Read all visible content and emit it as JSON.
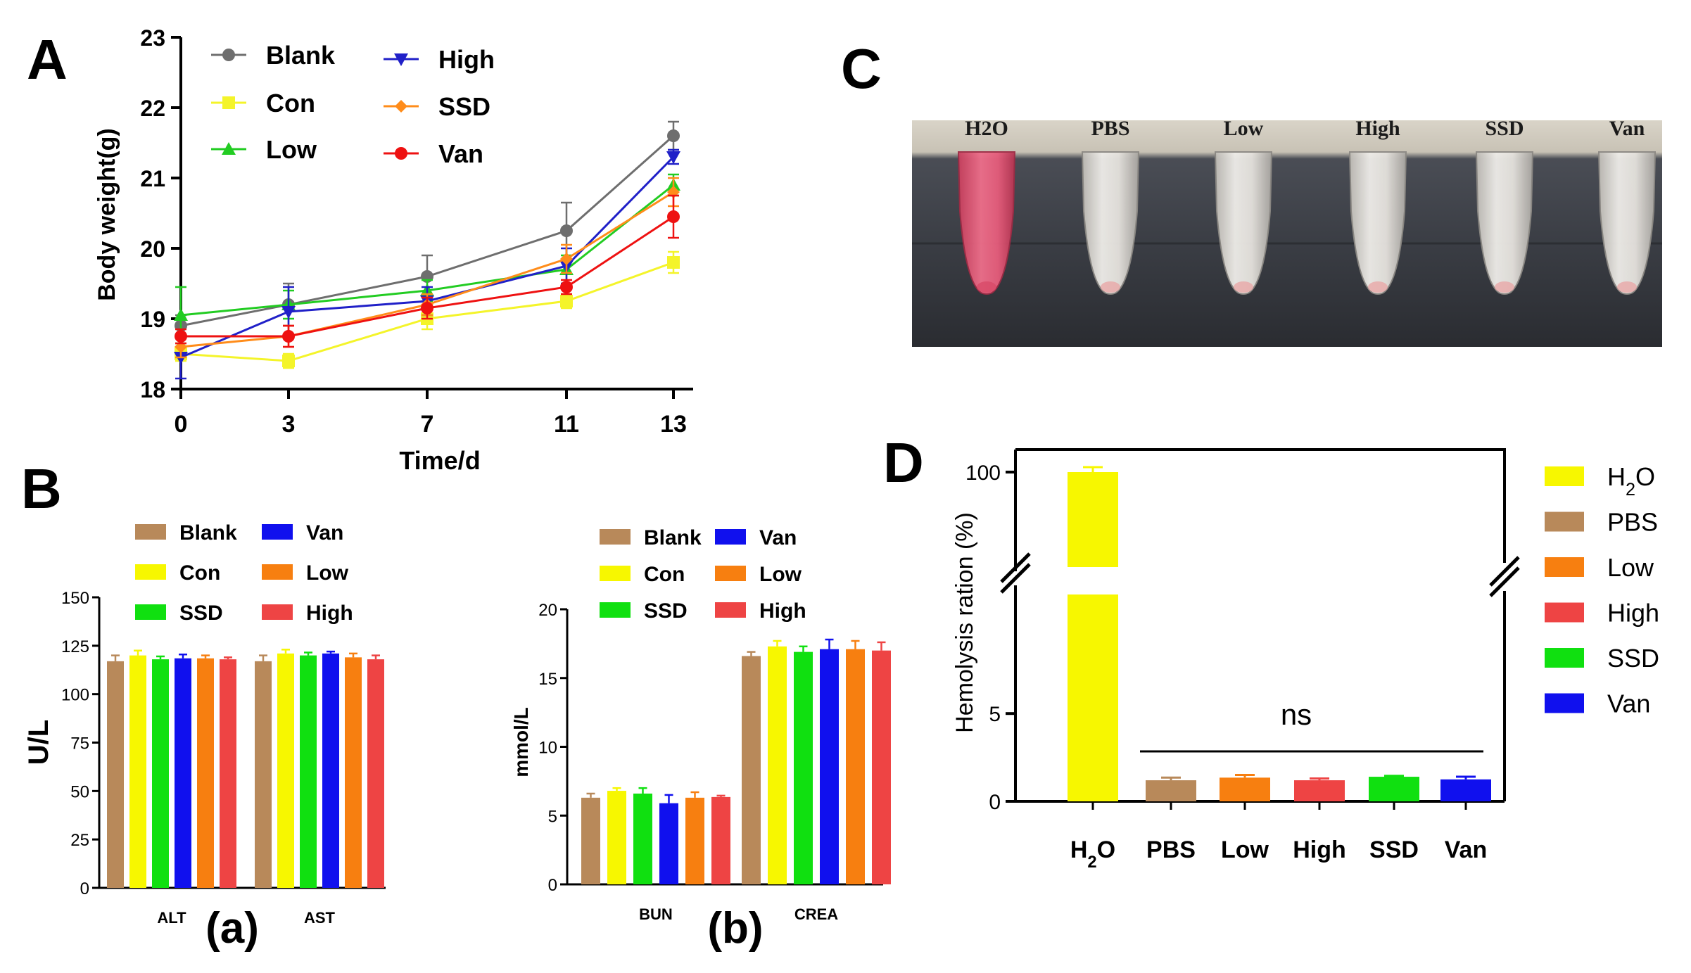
{
  "colors": {
    "Blank_A": "#6e6e6e",
    "Con": "#f4f42a",
    "Low_A": "#22cc22",
    "High_A": "#2020c8",
    "SSD_A": "#ff8c1a",
    "Van_A": "#ee1111",
    "Blank_B": "#b8895a",
    "Con_B": "#f7f700",
    "SSD_B": "#10e010",
    "Van_B": "#1010ee",
    "Low_B": "#f77f10",
    "High_B": "#ee4444",
    "H2O_D": "#f7f700",
    "PBS_D": "#b8895a",
    "Low_D": "#f77f10",
    "High_D": "#ee4444",
    "SSD_D": "#10e010",
    "Van_D": "#1010ee"
  },
  "chart_data": [
    {
      "panel": "A",
      "type": "line",
      "xlabel": "Time/d",
      "ylabel": "Body weight(g)",
      "x": [
        0,
        3,
        7,
        11,
        13
      ],
      "x_ticks": [
        "0",
        "3",
        "7",
        "11",
        "13"
      ],
      "ylim": [
        18,
        23
      ],
      "y_ticks": [
        "18",
        "19",
        "20",
        "21",
        "22",
        "23"
      ],
      "series": [
        {
          "name": "Blank",
          "values": [
            18.9,
            19.2,
            19.6,
            20.25,
            21.6
          ],
          "err": [
            0.15,
            0.3,
            0.3,
            0.4,
            0.2
          ]
        },
        {
          "name": "Con",
          "values": [
            18.5,
            18.4,
            19.0,
            19.25,
            19.8
          ],
          "err": [
            0.1,
            0.1,
            0.15,
            0.1,
            0.15
          ]
        },
        {
          "name": "Low",
          "values": [
            19.05,
            19.2,
            19.4,
            19.7,
            20.9
          ],
          "err": [
            0.4,
            0.2,
            0.15,
            0.2,
            0.15
          ]
        },
        {
          "name": "High",
          "values": [
            18.45,
            19.1,
            19.25,
            19.75,
            21.3
          ],
          "err": [
            0.3,
            0.35,
            0.2,
            0.25,
            0.1
          ]
        },
        {
          "name": "SSD",
          "values": [
            18.6,
            18.75,
            19.2,
            19.85,
            20.8
          ],
          "err": [
            0.15,
            0.15,
            0.15,
            0.2,
            0.2
          ]
        },
        {
          "name": "Van",
          "values": [
            18.75,
            18.75,
            19.15,
            19.45,
            20.45
          ],
          "err": [
            0.1,
            0.15,
            0.15,
            0.1,
            0.3
          ]
        }
      ],
      "legend": [
        "Blank",
        "Con",
        "Low",
        "High",
        "SSD",
        "Van"
      ],
      "panel_label": "A"
    },
    {
      "panel": "B(a)",
      "type": "bar",
      "categories": [
        "ALT",
        "AST"
      ],
      "ylabel": "U/L",
      "ylim": [
        0,
        150
      ],
      "y_ticks": [
        "0",
        "25",
        "50",
        "75",
        "100",
        "125",
        "150"
      ],
      "series": [
        {
          "name": "Blank",
          "values": [
            117,
            117
          ],
          "err": [
            3,
            3
          ]
        },
        {
          "name": "Con",
          "values": [
            120,
            121
          ],
          "err": [
            2.5,
            2
          ]
        },
        {
          "name": "SSD",
          "values": [
            118,
            120
          ],
          "err": [
            1.5,
            1.5
          ]
        },
        {
          "name": "Van",
          "values": [
            118.5,
            121
          ],
          "err": [
            2,
            1
          ]
        },
        {
          "name": "Low",
          "values": [
            118.5,
            119
          ],
          "err": [
            1.5,
            2
          ]
        },
        {
          "name": "High",
          "values": [
            118,
            118
          ],
          "err": [
            1,
            2
          ]
        }
      ],
      "legend": [
        "Blank",
        "Van",
        "Con",
        "Low",
        "SSD",
        "High"
      ],
      "sub_label": "(a)",
      "panel_label": "B"
    },
    {
      "panel": "B(b)",
      "type": "bar",
      "categories": [
        "BUN",
        "CREA"
      ],
      "ylabel": "mmol/L",
      "ylim": [
        0,
        20
      ],
      "y_ticks": [
        "0",
        "5",
        "10",
        "15",
        "20"
      ],
      "series": [
        {
          "name": "Blank",
          "values": [
            6.3,
            16.6
          ],
          "err": [
            0.3,
            0.3
          ]
        },
        {
          "name": "Con",
          "values": [
            6.8,
            17.3
          ],
          "err": [
            0.2,
            0.4
          ]
        },
        {
          "name": "SSD",
          "values": [
            6.6,
            16.9
          ],
          "err": [
            0.4,
            0.4
          ]
        },
        {
          "name": "Van",
          "values": [
            5.9,
            17.1
          ],
          "err": [
            0.6,
            0.7
          ]
        },
        {
          "name": "Low",
          "values": [
            6.3,
            17.1
          ],
          "err": [
            0.4,
            0.6
          ]
        },
        {
          "name": "High",
          "values": [
            6.35,
            17.0
          ],
          "err": [
            0.1,
            0.6
          ]
        }
      ],
      "legend": [
        "Blank",
        "Van",
        "Con",
        "Low",
        "SSD",
        "High"
      ],
      "sub_label": "(b)"
    },
    {
      "panel": "D",
      "type": "bar",
      "categories": [
        "H2O",
        "PBS",
        "Low",
        "High",
        "SSD",
        "Van"
      ],
      "values": [
        100,
        1.2,
        1.35,
        1.2,
        1.4,
        1.25
      ],
      "err": [
        1.5,
        0.15,
        0.15,
        0.1,
        0.05,
        0.15
      ],
      "ylabel": "Hemolysis ration (%)",
      "ylim": [
        0,
        100
      ],
      "axis_break": [
        10,
        70
      ],
      "y_ticks": [
        "0",
        "5",
        "100"
      ],
      "annotation": "ns",
      "legend": [
        "H2O",
        "PBS",
        "Low",
        "High",
        "SSD",
        "Van"
      ],
      "panel_label": "D"
    }
  ],
  "photo": {
    "panel_label": "C",
    "tube_labels": [
      "H2O",
      "PBS",
      "Low",
      "High",
      "SSD",
      "Van"
    ]
  }
}
